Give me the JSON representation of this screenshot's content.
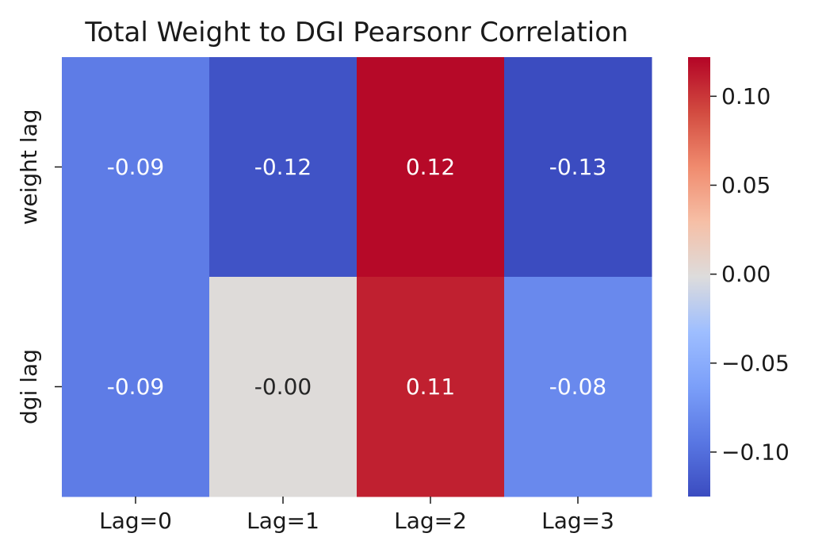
{
  "chart_data": {
    "type": "heatmap",
    "title": "Total Weight to DGI Pearsonr Correlation",
    "x_labels": [
      "Lag=0",
      "Lag=1",
      "Lag=2",
      "Lag=3"
    ],
    "y_labels": [
      "weight lag",
      "dgi lag"
    ],
    "values": [
      [
        -0.09,
        -0.12,
        0.12,
        -0.13
      ],
      [
        -0.09,
        -0.0,
        0.11,
        -0.08
      ]
    ],
    "annotations": [
      [
        "-0.09",
        "-0.12",
        "0.12",
        "-0.13"
      ],
      [
        "-0.09",
        "-0.00",
        "0.11",
        "-0.08"
      ]
    ],
    "colormap": "coolwarm",
    "vmin": -0.125,
    "vmax": 0.122,
    "colorbar": {
      "ticks": [
        0.1,
        0.05,
        0.0,
        -0.05,
        -0.1
      ],
      "tick_labels": [
        "0.10",
        "0.05",
        "0.00",
        "−0.05",
        "−0.10"
      ]
    },
    "grid": false,
    "legend": "colorbar-right"
  }
}
